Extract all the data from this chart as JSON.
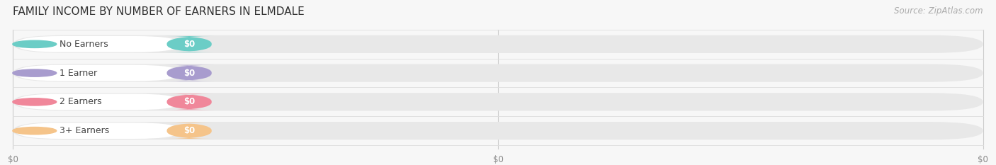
{
  "title": "FAMILY INCOME BY NUMBER OF EARNERS IN ELMDALE",
  "source": "Source: ZipAtlas.com",
  "categories": [
    "No Earners",
    "1 Earner",
    "2 Earners",
    "3+ Earners"
  ],
  "values": [
    0,
    0,
    0,
    0
  ],
  "bar_colors": [
    "#6bcdc6",
    "#a89cce",
    "#f0879a",
    "#f5c48a"
  ],
  "label_bg_colors": [
    "#ffffff",
    "#ffffff",
    "#ffffff",
    "#ffffff"
  ],
  "circle_colors": [
    "#6bcdc6",
    "#a89cce",
    "#f0879a",
    "#f5c48a"
  ],
  "x_tick_labels": [
    "$0",
    "$0",
    "$0"
  ],
  "background_color": "#f7f7f7",
  "bar_track_color": "#e8e8e8",
  "title_fontsize": 11,
  "source_fontsize": 8.5,
  "label_fontsize": 9,
  "value_fontsize": 8.5
}
